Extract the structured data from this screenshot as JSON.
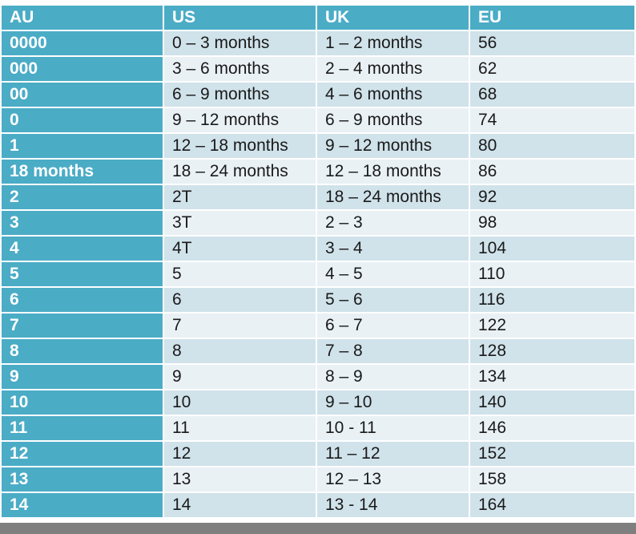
{
  "table": {
    "header": [
      "AU",
      "US",
      "UK",
      "EU"
    ],
    "rows": [
      [
        "0000",
        "0 – 3 months",
        "1 – 2 months",
        "56"
      ],
      [
        "000",
        "3 – 6 months",
        "2 – 4 months",
        "62"
      ],
      [
        "00",
        "6 – 9 months",
        "4 – 6 months",
        "68"
      ],
      [
        "0",
        "9 – 12 months",
        "6 – 9 months",
        "74"
      ],
      [
        "1",
        "12 – 18 months",
        "9 – 12 months",
        "80"
      ],
      [
        "18 months",
        "18 – 24 months",
        "12 – 18 months",
        "86"
      ],
      [
        "2",
        "2T",
        "18 – 24 months",
        "92"
      ],
      [
        "3",
        "3T",
        "2 – 3",
        "98"
      ],
      [
        "4",
        "4T",
        "3 – 4",
        "104"
      ],
      [
        "5",
        "5",
        "4 – 5",
        "110"
      ],
      [
        "6",
        "6",
        "5 – 6",
        "116"
      ],
      [
        "7",
        "7",
        "6 – 7",
        "122"
      ],
      [
        "8",
        "8",
        "7 – 8",
        "128"
      ],
      [
        "9",
        "9",
        "8 – 9",
        "134"
      ],
      [
        "10",
        "10",
        "9 – 10",
        "140"
      ],
      [
        "11",
        "11",
        "10 - 11",
        "146"
      ],
      [
        "12",
        "12",
        "11 – 12",
        "152"
      ],
      [
        "13",
        "13",
        "12 – 13",
        "158"
      ],
      [
        "14",
        "14",
        "13 - 14",
        "164"
      ]
    ]
  }
}
